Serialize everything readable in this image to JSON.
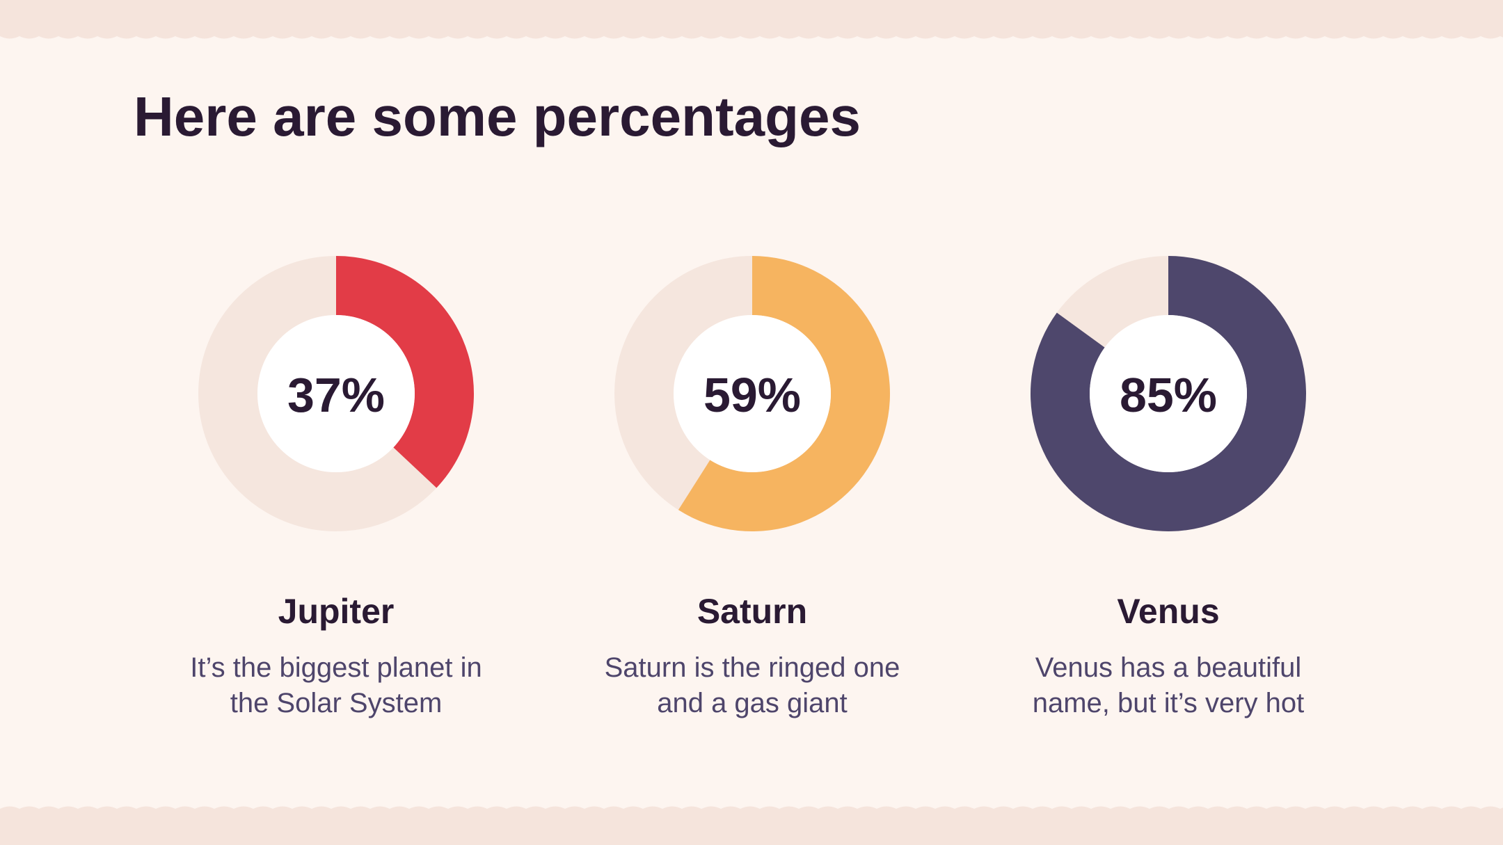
{
  "title": "Here are some percentages",
  "chart_data": [
    {
      "type": "donut",
      "title": "Jupiter",
      "values": [
        37
      ],
      "value_labels": [
        "37%"
      ],
      "total": 100,
      "color": "#e23c47",
      "track_color": "#f5e6de",
      "description": "It’s the biggest planet in the Solar System"
    },
    {
      "type": "donut",
      "title": "Saturn",
      "values": [
        59
      ],
      "value_labels": [
        "59%"
      ],
      "total": 100,
      "color": "#f6b460",
      "track_color": "#f5e6de",
      "description": "Saturn is the ringed one and a gas giant"
    },
    {
      "type": "donut",
      "title": "Venus",
      "values": [
        85
      ],
      "value_labels": [
        "85%"
      ],
      "total": 100,
      "color": "#4e476c",
      "track_color": "#f5e6de",
      "description": "Venus has a beautiful name, but it’s very hot"
    }
  ]
}
